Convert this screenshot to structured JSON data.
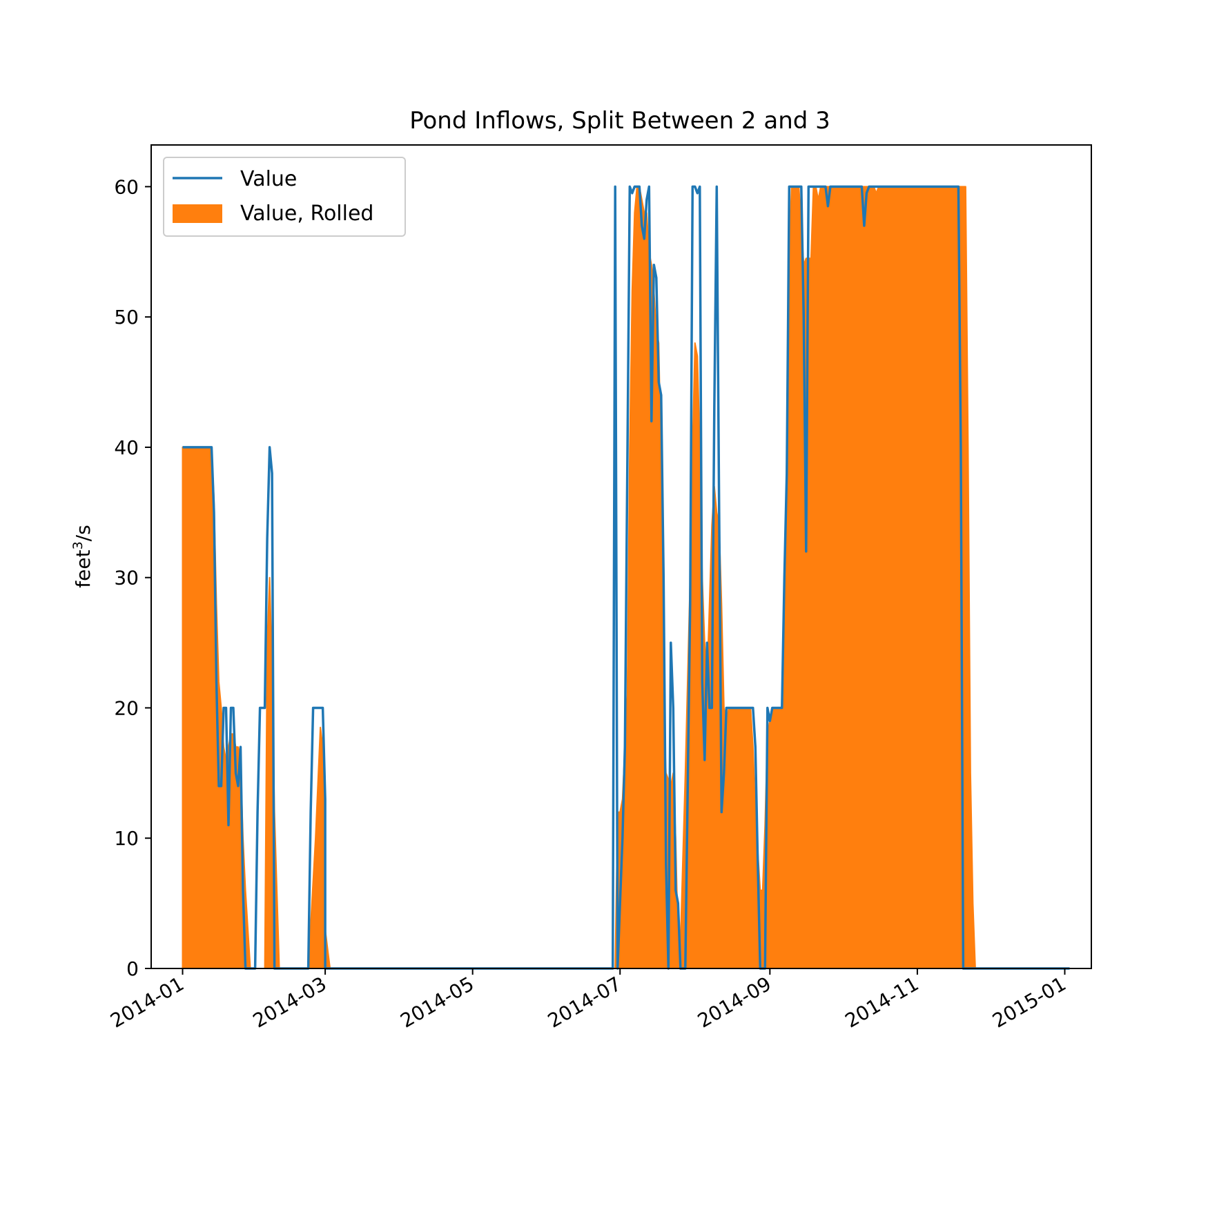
{
  "chart_data": {
    "type": "line",
    "title": "Pond Inflows, Split Between 2 and 3",
    "ylabel": {
      "base": "feet",
      "sup": "3",
      "suffix": "/s"
    },
    "xlabel": "",
    "xlim": [
      "2013-12-19",
      "2015-01-12"
    ],
    "ylim": [
      0,
      63.2
    ],
    "x_ticks": [
      "2014-01",
      "2014-03",
      "2014-05",
      "2014-07",
      "2014-09",
      "2014-11",
      "2015-01"
    ],
    "x_tick_dates": [
      "2014-01-01",
      "2014-03-01",
      "2014-05-01",
      "2014-07-01",
      "2014-09-01",
      "2014-11-01",
      "2015-01-01"
    ],
    "y_ticks": [
      0,
      10,
      20,
      30,
      40,
      50,
      60
    ],
    "grid": false,
    "legend": {
      "position": "upper left",
      "entries": [
        "Value",
        "Value, Rolled"
      ]
    },
    "series": [
      {
        "name": "Value",
        "style": "line",
        "color": "#1f77b4",
        "points": [
          [
            "2014-01-01",
            40
          ],
          [
            "2014-01-13",
            40
          ],
          [
            "2014-01-14",
            35
          ],
          [
            "2014-01-15",
            22
          ],
          [
            "2014-01-16",
            14
          ],
          [
            "2014-01-17",
            14
          ],
          [
            "2014-01-18",
            20
          ],
          [
            "2014-01-19",
            20
          ],
          [
            "2014-01-20",
            11
          ],
          [
            "2014-01-21",
            20
          ],
          [
            "2014-01-22",
            20
          ],
          [
            "2014-01-23",
            15
          ],
          [
            "2014-01-24",
            14
          ],
          [
            "2014-01-25",
            17
          ],
          [
            "2014-01-26",
            6
          ],
          [
            "2014-01-27",
            0
          ],
          [
            "2014-01-31",
            0
          ],
          [
            "2014-02-01",
            12
          ],
          [
            "2014-02-02",
            20
          ],
          [
            "2014-02-04",
            20
          ],
          [
            "2014-02-05",
            33
          ],
          [
            "2014-02-06",
            40
          ],
          [
            "2014-02-07",
            38
          ],
          [
            "2014-02-08",
            0
          ],
          [
            "2014-02-22",
            0
          ],
          [
            "2014-02-23",
            12
          ],
          [
            "2014-02-24",
            20
          ],
          [
            "2014-02-28",
            20
          ],
          [
            "2014-02-29",
            13
          ],
          [
            "2014-03-01",
            0
          ],
          [
            "2014-06-28",
            0
          ],
          [
            "2014-06-29",
            60
          ],
          [
            "2014-06-30",
            0
          ],
          [
            "2014-07-01",
            5
          ],
          [
            "2014-07-02",
            10
          ],
          [
            "2014-07-03",
            17
          ],
          [
            "2014-07-05",
            60
          ],
          [
            "2014-07-06",
            59.5
          ],
          [
            "2014-07-07",
            60
          ],
          [
            "2014-07-09",
            60
          ],
          [
            "2014-07-10",
            57
          ],
          [
            "2014-07-11",
            56
          ],
          [
            "2014-07-12",
            59
          ],
          [
            "2014-07-13",
            60
          ],
          [
            "2014-07-14",
            42
          ],
          [
            "2014-07-15",
            54
          ],
          [
            "2014-07-16",
            53
          ],
          [
            "2014-07-17",
            45
          ],
          [
            "2014-07-18",
            44
          ],
          [
            "2014-07-19",
            30
          ],
          [
            "2014-07-20",
            8
          ],
          [
            "2014-07-21",
            0
          ],
          [
            "2014-07-22",
            25
          ],
          [
            "2014-07-23",
            20
          ],
          [
            "2014-07-24",
            6
          ],
          [
            "2014-07-25",
            5
          ],
          [
            "2014-07-26",
            0
          ],
          [
            "2014-07-28",
            0
          ],
          [
            "2014-07-30",
            28
          ],
          [
            "2014-07-31",
            60
          ],
          [
            "2014-08-01",
            60
          ],
          [
            "2014-08-02",
            59.5
          ],
          [
            "2014-08-03",
            60
          ],
          [
            "2014-08-04",
            22
          ],
          [
            "2014-08-05",
            16
          ],
          [
            "2014-08-06",
            25
          ],
          [
            "2014-08-07",
            20
          ],
          [
            "2014-08-08",
            20
          ],
          [
            "2014-08-09",
            43
          ],
          [
            "2014-08-10",
            60
          ],
          [
            "2014-08-11",
            35
          ],
          [
            "2014-08-12",
            12
          ],
          [
            "2014-08-13",
            15
          ],
          [
            "2014-08-14",
            20
          ],
          [
            "2014-08-15",
            20
          ],
          [
            "2014-08-16",
            20
          ],
          [
            "2014-08-25",
            20
          ],
          [
            "2014-08-26",
            17
          ],
          [
            "2014-08-27",
            8
          ],
          [
            "2014-08-28",
            0
          ],
          [
            "2014-08-30",
            0
          ],
          [
            "2014-08-31",
            20
          ],
          [
            "2014-09-01",
            19
          ],
          [
            "2014-09-02",
            20
          ],
          [
            "2014-09-06",
            20
          ],
          [
            "2014-09-07",
            30
          ],
          [
            "2014-09-08",
            38
          ],
          [
            "2014-09-09",
            60
          ],
          [
            "2014-09-14",
            60
          ],
          [
            "2014-09-15",
            50
          ],
          [
            "2014-09-16",
            32
          ],
          [
            "2014-09-17",
            60
          ],
          [
            "2014-09-24",
            60
          ],
          [
            "2014-09-25",
            58.5
          ],
          [
            "2014-09-26",
            60
          ],
          [
            "2014-10-09",
            60
          ],
          [
            "2014-10-10",
            57
          ],
          [
            "2014-10-11",
            59.5
          ],
          [
            "2014-10-12",
            60
          ],
          [
            "2014-11-18",
            60
          ],
          [
            "2014-11-19",
            40
          ],
          [
            "2014-11-20",
            0
          ],
          [
            "2015-01-03",
            0
          ]
        ]
      },
      {
        "name": "Value, Rolled",
        "style": "filled",
        "color": "#ff7f0e",
        "points": [
          [
            "2014-01-01",
            0
          ],
          [
            "2014-01-01",
            40
          ],
          [
            "2014-01-13",
            40
          ],
          [
            "2014-01-14",
            36
          ],
          [
            "2014-01-15",
            28
          ],
          [
            "2014-01-16",
            22
          ],
          [
            "2014-01-17",
            20
          ],
          [
            "2014-01-18",
            17
          ],
          [
            "2014-01-19",
            16
          ],
          [
            "2014-01-20",
            17
          ],
          [
            "2014-01-21",
            18
          ],
          [
            "2014-01-22",
            18
          ],
          [
            "2014-01-23",
            17
          ],
          [
            "2014-01-24",
            17
          ],
          [
            "2014-01-25",
            16
          ],
          [
            "2014-01-26",
            10
          ],
          [
            "2014-01-27",
            6
          ],
          [
            "2014-01-29",
            0
          ],
          [
            "2014-02-04",
            0
          ],
          [
            "2014-02-05",
            25
          ],
          [
            "2014-02-06",
            30
          ],
          [
            "2014-02-07",
            23
          ],
          [
            "2014-02-08",
            12
          ],
          [
            "2014-02-10",
            0
          ],
          [
            "2014-02-22",
            0
          ],
          [
            "2014-02-25",
            10
          ],
          [
            "2014-02-27",
            18.5
          ],
          [
            "2014-02-28",
            17
          ],
          [
            "2014-02-29",
            10
          ],
          [
            "2014-03-01",
            3
          ],
          [
            "2014-03-03",
            0
          ],
          [
            "2014-06-29",
            0
          ],
          [
            "2014-06-30",
            12
          ],
          [
            "2014-07-01",
            12
          ],
          [
            "2014-07-02",
            13
          ],
          [
            "2014-07-03",
            17
          ],
          [
            "2014-07-04",
            21
          ],
          [
            "2014-07-05",
            40
          ],
          [
            "2014-07-06",
            52
          ],
          [
            "2014-07-07",
            58
          ],
          [
            "2014-07-08",
            60
          ],
          [
            "2014-07-09",
            60
          ],
          [
            "2014-07-10",
            59
          ],
          [
            "2014-07-11",
            58
          ],
          [
            "2014-07-12",
            58
          ],
          [
            "2014-07-13",
            55
          ],
          [
            "2014-07-14",
            54
          ],
          [
            "2014-07-15",
            52
          ],
          [
            "2014-07-16",
            49
          ],
          [
            "2014-07-17",
            48
          ],
          [
            "2014-07-18",
            38
          ],
          [
            "2014-07-19",
            20
          ],
          [
            "2014-07-20",
            15
          ],
          [
            "2014-07-22",
            14
          ],
          [
            "2014-07-23",
            15
          ],
          [
            "2014-07-24",
            10
          ],
          [
            "2014-07-25",
            2
          ],
          [
            "2014-07-26",
            2
          ],
          [
            "2014-07-28",
            15
          ],
          [
            "2014-07-30",
            30
          ],
          [
            "2014-07-31",
            40
          ],
          [
            "2014-08-01",
            48
          ],
          [
            "2014-08-02",
            47
          ],
          [
            "2014-08-03",
            40
          ],
          [
            "2014-08-04",
            30
          ],
          [
            "2014-08-05",
            25
          ],
          [
            "2014-08-06",
            22
          ],
          [
            "2014-08-07",
            28
          ],
          [
            "2014-08-08",
            34
          ],
          [
            "2014-08-09",
            37
          ],
          [
            "2014-08-10",
            35
          ],
          [
            "2014-08-11",
            34
          ],
          [
            "2014-08-12",
            28
          ],
          [
            "2014-08-13",
            20
          ],
          [
            "2014-08-14",
            19
          ],
          [
            "2014-08-15",
            20
          ],
          [
            "2014-08-24",
            20
          ],
          [
            "2014-08-25",
            17
          ],
          [
            "2014-08-26",
            12
          ],
          [
            "2014-08-27",
            9
          ],
          [
            "2014-08-28",
            6
          ],
          [
            "2014-08-29",
            6
          ],
          [
            "2014-08-30",
            11
          ],
          [
            "2014-08-31",
            18
          ],
          [
            "2014-09-01",
            19
          ],
          [
            "2014-09-02",
            20
          ],
          [
            "2014-09-06",
            20
          ],
          [
            "2014-09-07",
            26
          ],
          [
            "2014-09-08",
            40
          ],
          [
            "2014-09-09",
            55
          ],
          [
            "2014-09-10",
            60
          ],
          [
            "2014-09-13",
            60
          ],
          [
            "2014-09-14",
            57
          ],
          [
            "2014-09-15",
            54
          ],
          [
            "2014-09-16",
            54.5
          ],
          [
            "2014-09-18",
            54.5
          ],
          [
            "2014-09-19",
            60
          ],
          [
            "2014-09-20",
            60
          ],
          [
            "2014-09-21",
            59
          ],
          [
            "2014-09-22",
            60
          ],
          [
            "2014-10-14",
            60
          ],
          [
            "2014-10-15",
            59.5
          ],
          [
            "2014-10-16",
            60
          ],
          [
            "2014-11-21",
            60
          ],
          [
            "2014-11-22",
            40
          ],
          [
            "2014-11-23",
            15
          ],
          [
            "2014-11-24",
            5
          ],
          [
            "2014-11-25",
            0
          ],
          [
            "2015-01-03",
            0
          ]
        ]
      }
    ]
  }
}
